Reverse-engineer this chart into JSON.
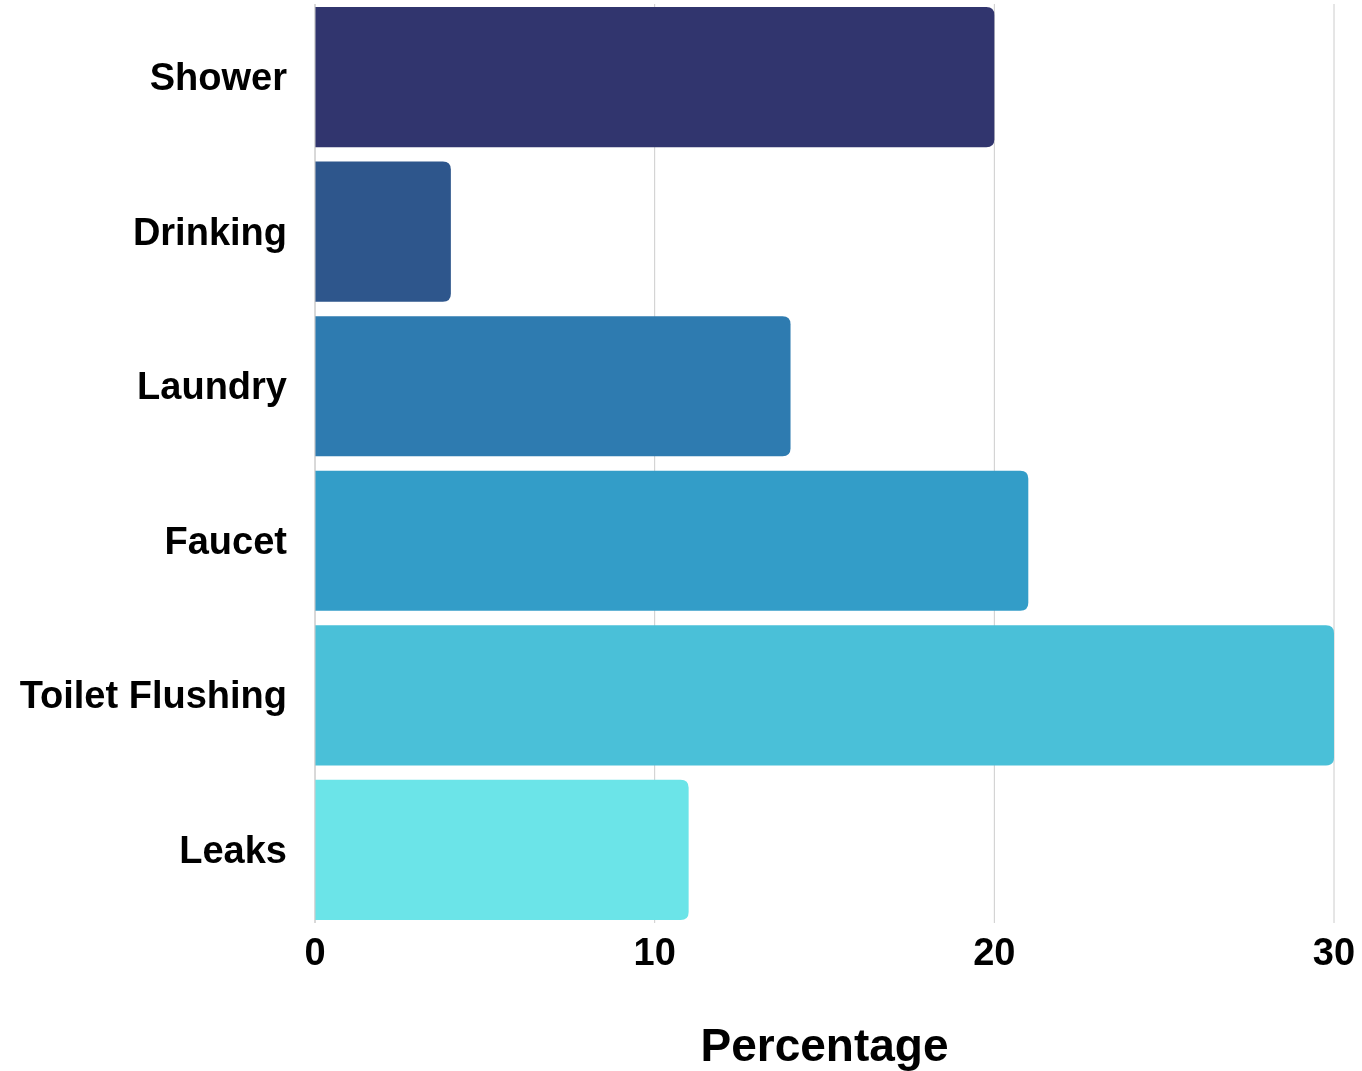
{
  "chart_data": {
    "type": "bar",
    "orientation": "horizontal",
    "xlabel": "Percentage",
    "categories": [
      "Shower",
      "Drinking",
      "Laundry",
      "Faucet",
      "Toilet Flushing",
      "Leaks"
    ],
    "values": [
      20,
      4,
      14,
      21,
      30,
      11
    ],
    "colors": [
      "#31356e",
      "#2e568c",
      "#2e7bb0",
      "#339dc8",
      "#4ac0d8",
      "#6be4e8"
    ],
    "xlim": [
      0,
      30
    ],
    "xticks": [
      0,
      10,
      20,
      30
    ],
    "grid": "x"
  }
}
